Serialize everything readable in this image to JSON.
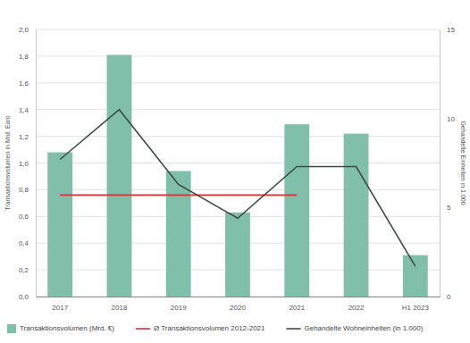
{
  "chart_data": {
    "type": "bar",
    "y_label": "Transaktionsvolumen in Mrd. Euro",
    "y2_label": "Gehandelte Einheiten in 1.000",
    "categories": [
      "2017",
      "2018",
      "2019",
      "2020",
      "2021",
      "2022",
      "H1 2023"
    ],
    "series": [
      {
        "name": "Transaktionsvolumen (Mrd. €)",
        "type": "bar",
        "color": "#80bfaa",
        "values": [
          1.08,
          1.81,
          0.94,
          0.63,
          1.29,
          1.22,
          0.31
        ]
      },
      {
        "name": "Ø Transaktionsvolumen 2012-2021",
        "type": "line",
        "color": "#d1352c",
        "values": [
          0.76,
          0.76,
          0.76,
          0.76,
          0.76,
          null,
          null
        ]
      },
      {
        "name": "Gehandelte Wohneinheiten (in 1.000)",
        "type": "line",
        "color": "#3e4a45",
        "axis": "y2",
        "values": [
          7.7,
          10.5,
          6.3,
          4.4,
          7.3,
          7.3,
          1.7
        ]
      }
    ],
    "ylim": [
      0,
      2
    ],
    "yticks": [
      {
        "value": 0,
        "label": "0,0"
      },
      {
        "value": 0.2,
        "label": "0,2"
      },
      {
        "value": 0.4,
        "label": "0,4"
      },
      {
        "value": 0.6,
        "label": "0,6"
      },
      {
        "value": 0.8,
        "label": "0,8"
      },
      {
        "value": 1,
        "label": "1,0"
      },
      {
        "value": 1.2,
        "label": "1,2"
      },
      {
        "value": 1.4,
        "label": "1,4"
      },
      {
        "value": 1.6,
        "label": "1,6"
      },
      {
        "value": 1.8,
        "label": "1,8"
      },
      {
        "value": 2,
        "label": "2,0"
      }
    ],
    "y2lim": [
      0,
      15
    ],
    "y2ticks": [
      0,
      5,
      10,
      15
    ],
    "grid": true,
    "legend": "bottom"
  }
}
